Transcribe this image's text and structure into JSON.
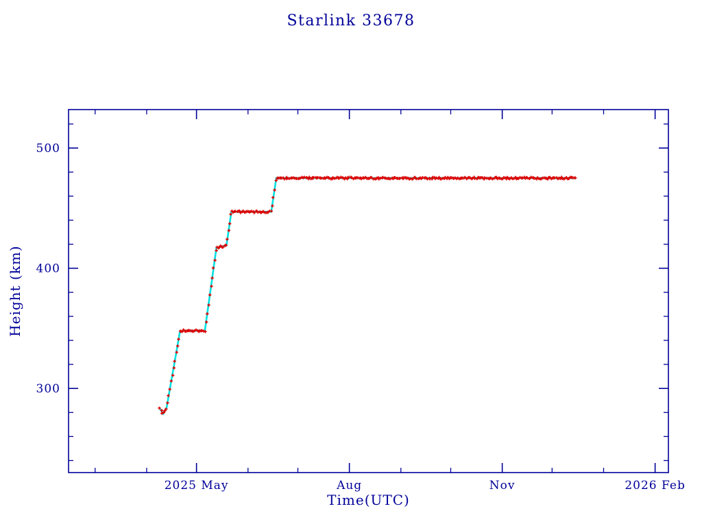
{
  "accent_color": "#000099",
  "chart_data": {
    "type": "scatter",
    "title": "Starlink 33678",
    "xlabel": "Time(UTC)",
    "ylabel": "Height (km)",
    "grid": false,
    "legend": "none",
    "axis_color": "#000099",
    "x_axis": {
      "unit": "days since 2025-01-01",
      "lim": [
        43,
        404
      ],
      "major_ticks": [
        {
          "value": 120,
          "label": "2025 May"
        },
        {
          "value": 212,
          "label": "Aug"
        },
        {
          "value": 304,
          "label": "Nov"
        },
        {
          "value": 396,
          "label": "2026 Feb"
        }
      ],
      "minor_ticks": [
        59,
        90,
        151,
        181,
        243,
        273,
        334,
        365
      ]
    },
    "y_axis": {
      "lim": [
        230,
        532
      ],
      "major_ticks": [
        300,
        400,
        500
      ],
      "minor_tick_step": 20
    },
    "series": [
      {
        "name": "height-samples",
        "type": "scatter",
        "marker": "plus",
        "color": "#dd0000",
        "sample_step_days": 0.75,
        "keypoints_day_km": [
          [
            98,
            283
          ],
          [
            100,
            279
          ],
          [
            102,
            284
          ],
          [
            110,
            347
          ],
          [
            112,
            348
          ],
          [
            125,
            348
          ],
          [
            132,
            417
          ],
          [
            138,
            419
          ],
          [
            141,
            447
          ],
          [
            165,
            447
          ],
          [
            168,
            475
          ],
          [
            348,
            475
          ]
        ]
      },
      {
        "name": "smoothed-track",
        "type": "line",
        "color": "#00e0e0",
        "follows": "height-samples"
      }
    ]
  }
}
